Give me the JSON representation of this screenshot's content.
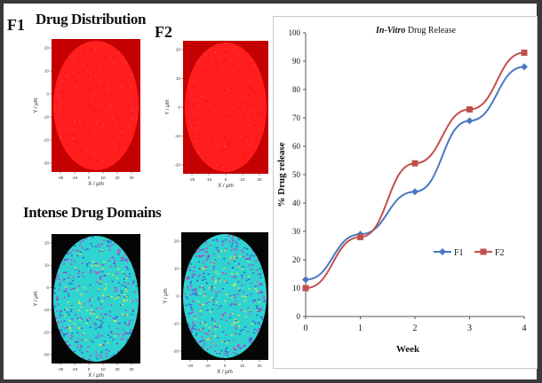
{
  "figure": {
    "panel_f1_label": "F1",
    "panel_f2_label": "F2",
    "section_distribution": "Drug Distribution",
    "section_domains": "Intense Drug Domains"
  },
  "maps": {
    "x_axis_label": "X / μm",
    "y_axis_label": "Y / μm",
    "x_ticks_f1": [
      "-30",
      "-10",
      "0",
      "10",
      "20",
      "30"
    ],
    "x_ticks_f2": [
      "-20",
      "-10",
      "0",
      "10",
      "20"
    ],
    "y_ticks_f1": [
      "20",
      "10",
      "0",
      "-10",
      "-20",
      "-30"
    ],
    "y_ticks_f2": [
      "20",
      "10",
      "0",
      "-10",
      "-20"
    ],
    "colors": {
      "red_map": "#ff1d1d",
      "red_dark": "#c40000",
      "domain_cyan": "#2fd4d0",
      "domain_yellow": "#e6e83a",
      "domain_magenta": "#c83cc8",
      "domain_blue": "#3a57d8",
      "background_black": "#050505"
    }
  },
  "chart_data": {
    "type": "line",
    "title_italic": "In-Vitro",
    "title_rest": " Drug Release",
    "xlabel": "Week",
    "ylabel": "% Drug release",
    "categories": [
      "0",
      "1",
      "2",
      "3",
      "4"
    ],
    "ylim": [
      0,
      100
    ],
    "yticks": [
      "0",
      "10",
      "20",
      "30",
      "40",
      "50",
      "60",
      "70",
      "80",
      "90",
      "100"
    ],
    "series": [
      {
        "name": "F1",
        "values": [
          13,
          29,
          44,
          69,
          88
        ],
        "color": "#4a78c0",
        "marker": "diamond"
      },
      {
        "name": "F2",
        "values": [
          10,
          28,
          54,
          73,
          93
        ],
        "color": "#c0504d",
        "marker": "square"
      }
    ],
    "legend_placement": "right-middle",
    "grid": false
  }
}
